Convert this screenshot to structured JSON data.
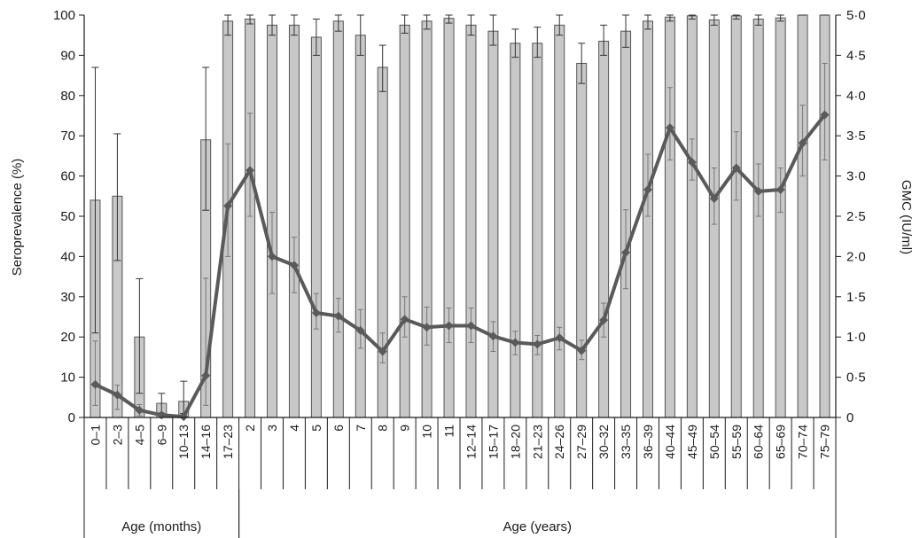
{
  "chart_data": {
    "type": "bar",
    "categories": [
      "0–1",
      "2–3",
      "4–5",
      "6–9",
      "10–13",
      "14–16",
      "17–23",
      "2",
      "3",
      "4",
      "5",
      "6",
      "7",
      "8",
      "9",
      "10",
      "11",
      "12–14",
      "15–17",
      "18–20",
      "21–23",
      "24–26",
      "27–29",
      "30–32",
      "33–35",
      "36–39",
      "40–44",
      "45–49",
      "50–54",
      "55–59",
      "60–64",
      "65–69",
      "70–74",
      "75–79"
    ],
    "groups": [
      {
        "label": "Age (months)",
        "count": 7
      },
      {
        "label": "Age (years)",
        "count": 27
      }
    ],
    "ylabel": "Seroprevalence (%)",
    "y2label": "GMC (IU/ml)",
    "ylim": [
      0,
      100
    ],
    "y2lim": [
      0,
      5
    ],
    "yticks": [
      "0",
      "10",
      "20",
      "30",
      "40",
      "50",
      "60",
      "70",
      "80",
      "90",
      "100"
    ],
    "y2ticks": [
      "0",
      "0·5",
      "1·0",
      "1·5",
      "2·0",
      "2·5",
      "3·0",
      "3·5",
      "4·0",
      "4·5",
      "5·0"
    ],
    "series": [
      {
        "type": "bar",
        "axis": "left",
        "values": [
          54,
          55,
          20,
          3.5,
          4,
          69,
          98.5,
          99,
          97.5,
          97.5,
          94.5,
          98.5,
          95,
          87,
          97.5,
          98.5,
          99.2,
          97.5,
          96,
          93,
          93,
          97.5,
          88,
          93.5,
          96,
          98.5,
          99.5,
          99.8,
          98.8,
          99.8,
          99,
          99.3,
          100,
          100
        ],
        "err_low": [
          21,
          39,
          6,
          1,
          1,
          51.5,
          95,
          97.8,
          95,
          95,
          90,
          96,
          90,
          81,
          95.5,
          96.5,
          98,
          95,
          92.5,
          89.5,
          89.5,
          95,
          83,
          90,
          92,
          96.5,
          98.5,
          99,
          97.5,
          99,
          97.5,
          98.5,
          100,
          100
        ],
        "err_high": [
          87,
          70.5,
          34.5,
          6,
          9,
          87,
          100,
          100,
          100,
          100,
          99,
          100,
          100,
          92.5,
          100,
          100,
          100,
          100,
          100,
          96.5,
          97,
          100,
          93,
          97.5,
          100,
          100,
          100,
          100,
          100,
          100,
          100,
          100,
          100,
          100
        ]
      },
      {
        "type": "line",
        "axis": "right",
        "values": [
          0.41,
          0.28,
          0.09,
          0.03,
          0.01,
          0.52,
          2.63,
          3.07,
          2.0,
          1.89,
          1.3,
          1.26,
          1.08,
          0.82,
          1.22,
          1.12,
          1.14,
          1.14,
          1.01,
          0.93,
          0.91,
          0.99,
          0.83,
          1.21,
          2.05,
          2.83,
          3.6,
          3.17,
          2.72,
          3.1,
          2.81,
          2.83,
          3.41,
          3.76
        ],
        "err_low": [
          0.15,
          0.1,
          0.02,
          0.005,
          0.002,
          0.15,
          2.0,
          2.5,
          1.54,
          1.55,
          1.1,
          1.06,
          0.86,
          0.68,
          1.0,
          0.9,
          0.93,
          0.93,
          0.82,
          0.78,
          0.78,
          0.84,
          0.72,
          1.0,
          1.6,
          2.5,
          3.2,
          2.95,
          2.4,
          2.7,
          2.5,
          2.55,
          3.0,
          3.2
        ],
        "err_high": [
          0.95,
          0.4,
          0.16,
          0.06,
          0.03,
          1.73,
          3.4,
          3.78,
          2.55,
          2.24,
          1.54,
          1.48,
          1.34,
          1.05,
          1.5,
          1.37,
          1.36,
          1.36,
          1.19,
          1.07,
          1.02,
          1.12,
          0.96,
          1.42,
          2.58,
          3.27,
          4.1,
          3.46,
          3.1,
          3.55,
          3.15,
          3.1,
          3.88,
          4.4
        ]
      }
    ],
    "colors": {
      "bar_fill": "#c8c8c8",
      "bar_stroke": "#555555",
      "line": "#5a5a5a",
      "axis": "#1a1a1a"
    }
  }
}
